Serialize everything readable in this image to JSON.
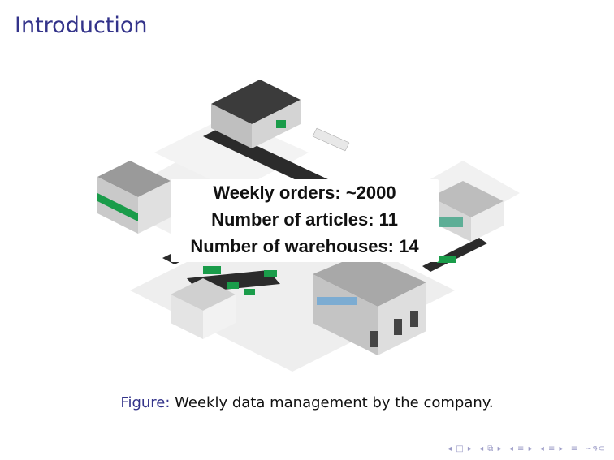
{
  "slide": {
    "title": "Introduction"
  },
  "stats": [
    "Weekly orders: ~2000",
    "Number of  articles: 11",
    "Number of warehouses: 14"
  ],
  "caption": {
    "label": "Figure:",
    "text": " Weekly data management by the company."
  },
  "nav": {
    "frame": "◂ □ ▸",
    "subsection": "◂ ⧉ ▸",
    "section": "◂ ≡ ▸",
    "subsection2": "◂ ≡ ▸",
    "align": "≡",
    "search": "∽ዓ⊂"
  },
  "colors": {
    "title": "#33338a",
    "accent_green": "#1a9c4a"
  }
}
